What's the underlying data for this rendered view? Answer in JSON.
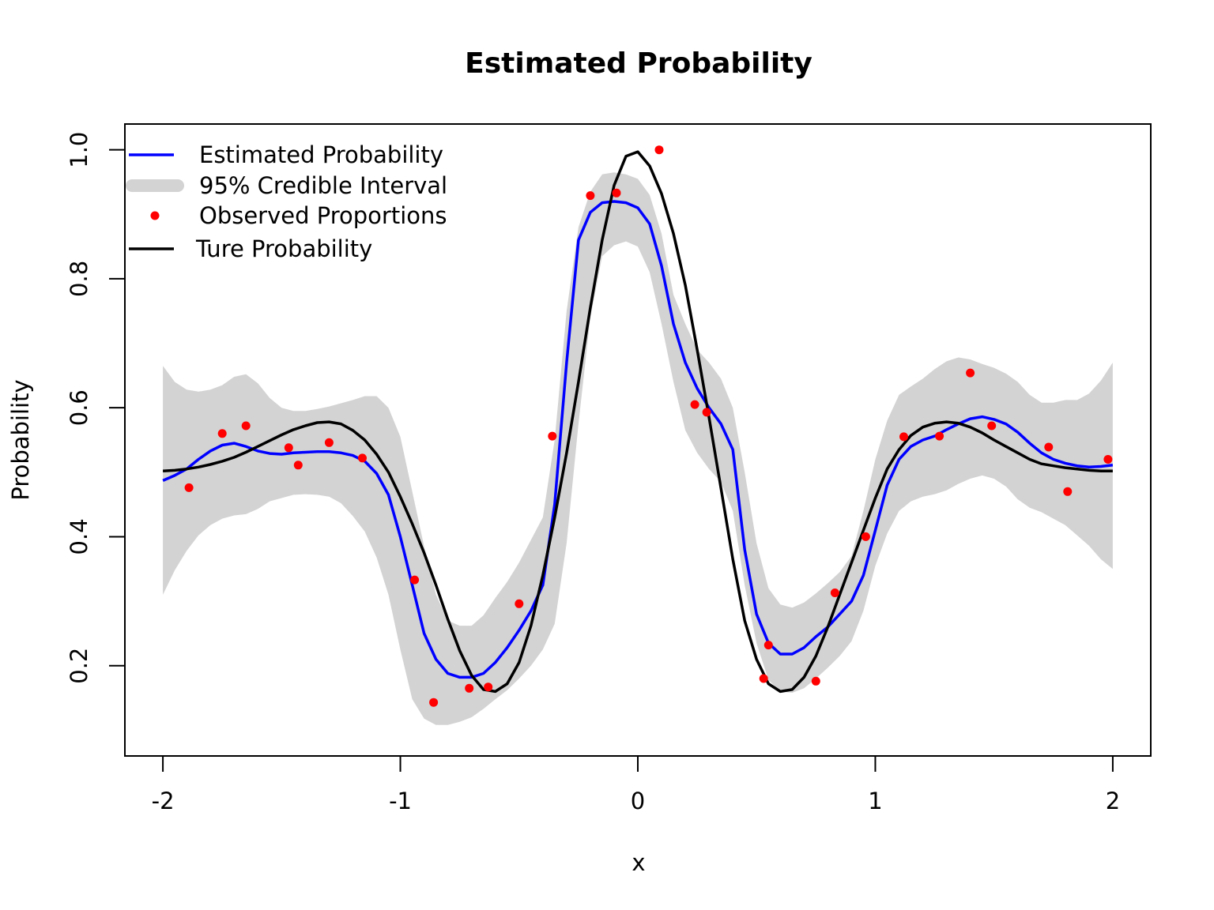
{
  "chart_data": {
    "type": "line",
    "title": "Estimated Probability",
    "xlabel": "x",
    "ylabel": "Probability",
    "xlim": [
      -2.16,
      2.16
    ],
    "ylim": [
      0.06,
      1.04
    ],
    "x_ticks": [
      -2,
      -1,
      0,
      1,
      2
    ],
    "x_tick_labels": [
      "-2",
      "-1",
      "0",
      "1",
      "2"
    ],
    "y_ticks": [
      0.2,
      0.4,
      0.6,
      0.8,
      1.0
    ],
    "y_tick_labels": [
      "0.2",
      "0.4",
      "0.6",
      "0.8",
      "1.0"
    ],
    "grid": false,
    "legend_position": "top-left",
    "legend": [
      {
        "label": "Estimated Probability",
        "kind": "line",
        "color": "#0000ff"
      },
      {
        "label": "95% Credible Interval",
        "kind": "band",
        "color": "#d3d3d3"
      },
      {
        "label": "Observed Proportions",
        "kind": "point",
        "color": "#ff0000"
      },
      {
        "label": "Ture Probability",
        "kind": "line",
        "color": "#000000"
      }
    ],
    "series": [
      {
        "name": "95% Credible Interval",
        "type": "band",
        "color": "#d3d3d3",
        "x": [
          -2.0,
          -1.95,
          -1.9,
          -1.85,
          -1.8,
          -1.75,
          -1.7,
          -1.65,
          -1.6,
          -1.55,
          -1.5,
          -1.45,
          -1.4,
          -1.35,
          -1.3,
          -1.25,
          -1.2,
          -1.15,
          -1.1,
          -1.05,
          -1.0,
          -0.95,
          -0.9,
          -0.85,
          -0.8,
          -0.75,
          -0.7,
          -0.65,
          -0.6,
          -0.55,
          -0.5,
          -0.45,
          -0.4,
          -0.35,
          -0.3,
          -0.25,
          -0.2,
          -0.15,
          -0.1,
          -0.05,
          0.0,
          0.05,
          0.1,
          0.15,
          0.2,
          0.25,
          0.3,
          0.35,
          0.4,
          0.45,
          0.5,
          0.55,
          0.6,
          0.65,
          0.7,
          0.75,
          0.8,
          0.85,
          0.9,
          0.95,
          1.0,
          1.05,
          1.1,
          1.15,
          1.2,
          1.25,
          1.3,
          1.35,
          1.4,
          1.45,
          1.5,
          1.55,
          1.6,
          1.65,
          1.7,
          1.75,
          1.8,
          1.85,
          1.9,
          1.95,
          2.0
        ],
        "upper": [
          0.665,
          0.64,
          0.628,
          0.625,
          0.628,
          0.635,
          0.648,
          0.652,
          0.638,
          0.615,
          0.6,
          0.595,
          0.595,
          0.598,
          0.602,
          0.607,
          0.612,
          0.618,
          0.618,
          0.6,
          0.555,
          0.47,
          0.385,
          0.31,
          0.27,
          0.262,
          0.262,
          0.278,
          0.305,
          0.33,
          0.36,
          0.395,
          0.43,
          0.55,
          0.75,
          0.88,
          0.935,
          0.962,
          0.965,
          0.962,
          0.955,
          0.93,
          0.87,
          0.775,
          0.73,
          0.69,
          0.67,
          0.645,
          0.6,
          0.5,
          0.39,
          0.32,
          0.295,
          0.29,
          0.298,
          0.312,
          0.328,
          0.345,
          0.37,
          0.44,
          0.52,
          0.58,
          0.62,
          0.633,
          0.645,
          0.66,
          0.672,
          0.678,
          0.675,
          0.668,
          0.662,
          0.653,
          0.64,
          0.62,
          0.608,
          0.608,
          0.612,
          0.612,
          0.622,
          0.642,
          0.67
        ],
        "lower": [
          0.31,
          0.348,
          0.378,
          0.402,
          0.418,
          0.428,
          0.433,
          0.435,
          0.443,
          0.455,
          0.46,
          0.465,
          0.466,
          0.465,
          0.462,
          0.452,
          0.432,
          0.408,
          0.368,
          0.31,
          0.225,
          0.148,
          0.118,
          0.108,
          0.108,
          0.113,
          0.12,
          0.133,
          0.148,
          0.162,
          0.18,
          0.2,
          0.225,
          0.265,
          0.39,
          0.575,
          0.74,
          0.835,
          0.852,
          0.858,
          0.85,
          0.81,
          0.73,
          0.64,
          0.565,
          0.53,
          0.505,
          0.485,
          0.44,
          0.325,
          0.235,
          0.178,
          0.16,
          0.158,
          0.165,
          0.18,
          0.197,
          0.215,
          0.238,
          0.285,
          0.355,
          0.405,
          0.44,
          0.455,
          0.462,
          0.466,
          0.472,
          0.482,
          0.49,
          0.495,
          0.49,
          0.478,
          0.458,
          0.445,
          0.438,
          0.428,
          0.418,
          0.402,
          0.386,
          0.365,
          0.35
        ]
      },
      {
        "name": "Estimated Probability",
        "type": "line",
        "color": "#0000ff",
        "x": [
          -2.0,
          -1.95,
          -1.9,
          -1.85,
          -1.8,
          -1.75,
          -1.7,
          -1.65,
          -1.6,
          -1.55,
          -1.5,
          -1.45,
          -1.4,
          -1.35,
          -1.3,
          -1.25,
          -1.2,
          -1.15,
          -1.1,
          -1.05,
          -1.0,
          -0.95,
          -0.9,
          -0.85,
          -0.8,
          -0.75,
          -0.7,
          -0.65,
          -0.6,
          -0.55,
          -0.5,
          -0.45,
          -0.4,
          -0.35,
          -0.3,
          -0.25,
          -0.2,
          -0.15,
          -0.1,
          -0.05,
          0.0,
          0.05,
          0.1,
          0.15,
          0.2,
          0.25,
          0.3,
          0.35,
          0.4,
          0.45,
          0.5,
          0.55,
          0.6,
          0.65,
          0.7,
          0.75,
          0.8,
          0.85,
          0.9,
          0.95,
          1.0,
          1.05,
          1.1,
          1.15,
          1.2,
          1.25,
          1.3,
          1.35,
          1.4,
          1.45,
          1.5,
          1.55,
          1.6,
          1.65,
          1.7,
          1.75,
          1.8,
          1.85,
          1.9,
          1.95,
          2.0
        ],
        "y": [
          0.487,
          0.495,
          0.505,
          0.52,
          0.533,
          0.542,
          0.545,
          0.54,
          0.533,
          0.529,
          0.528,
          0.53,
          0.531,
          0.532,
          0.532,
          0.53,
          0.526,
          0.517,
          0.498,
          0.465,
          0.4,
          0.325,
          0.25,
          0.21,
          0.188,
          0.182,
          0.182,
          0.188,
          0.205,
          0.228,
          0.255,
          0.285,
          0.325,
          0.45,
          0.67,
          0.86,
          0.903,
          0.918,
          0.92,
          0.918,
          0.91,
          0.885,
          0.82,
          0.73,
          0.67,
          0.63,
          0.6,
          0.575,
          0.535,
          0.38,
          0.28,
          0.235,
          0.218,
          0.218,
          0.228,
          0.245,
          0.26,
          0.28,
          0.3,
          0.34,
          0.41,
          0.48,
          0.52,
          0.54,
          0.55,
          0.556,
          0.566,
          0.575,
          0.583,
          0.586,
          0.582,
          0.575,
          0.562,
          0.545,
          0.53,
          0.52,
          0.514,
          0.51,
          0.508,
          0.509,
          0.511
        ]
      },
      {
        "name": "Ture Probability",
        "type": "line",
        "color": "#000000",
        "x": [
          -2.0,
          -1.95,
          -1.9,
          -1.85,
          -1.8,
          -1.75,
          -1.7,
          -1.65,
          -1.6,
          -1.55,
          -1.5,
          -1.45,
          -1.4,
          -1.35,
          -1.3,
          -1.25,
          -1.2,
          -1.15,
          -1.1,
          -1.05,
          -1.0,
          -0.95,
          -0.9,
          -0.85,
          -0.8,
          -0.75,
          -0.7,
          -0.65,
          -0.6,
          -0.55,
          -0.5,
          -0.45,
          -0.4,
          -0.35,
          -0.3,
          -0.25,
          -0.2,
          -0.15,
          -0.1,
          -0.05,
          0.0,
          0.05,
          0.1,
          0.15,
          0.2,
          0.25,
          0.3,
          0.35,
          0.4,
          0.45,
          0.5,
          0.55,
          0.6,
          0.65,
          0.7,
          0.75,
          0.8,
          0.85,
          0.9,
          0.95,
          1.0,
          1.05,
          1.1,
          1.15,
          1.2,
          1.25,
          1.3,
          1.35,
          1.4,
          1.45,
          1.5,
          1.55,
          1.6,
          1.65,
          1.7,
          1.75,
          1.8,
          1.85,
          1.9,
          1.95,
          2.0
        ],
        "y": [
          0.502,
          0.503,
          0.505,
          0.508,
          0.512,
          0.517,
          0.523,
          0.531,
          0.54,
          0.549,
          0.558,
          0.566,
          0.572,
          0.577,
          0.578,
          0.575,
          0.565,
          0.55,
          0.528,
          0.5,
          0.462,
          0.42,
          0.375,
          0.325,
          0.272,
          0.223,
          0.185,
          0.163,
          0.16,
          0.172,
          0.205,
          0.262,
          0.34,
          0.43,
          0.53,
          0.64,
          0.755,
          0.86,
          0.945,
          0.99,
          0.997,
          0.975,
          0.932,
          0.87,
          0.79,
          0.69,
          0.585,
          0.475,
          0.365,
          0.27,
          0.21,
          0.172,
          0.16,
          0.163,
          0.182,
          0.215,
          0.26,
          0.31,
          0.36,
          0.41,
          0.46,
          0.505,
          0.535,
          0.557,
          0.57,
          0.576,
          0.578,
          0.576,
          0.57,
          0.561,
          0.55,
          0.54,
          0.53,
          0.52,
          0.513,
          0.51,
          0.507,
          0.505,
          0.503,
          0.502,
          0.502
        ]
      },
      {
        "name": "Observed Proportions",
        "type": "scatter",
        "color": "#ff0000",
        "x": [
          -1.89,
          -1.75,
          -1.65,
          -1.47,
          -1.43,
          -1.3,
          -1.16,
          -0.94,
          -0.86,
          -0.71,
          -0.63,
          -0.5,
          -0.36,
          -0.2,
          -0.09,
          0.09,
          0.24,
          0.29,
          0.53,
          0.55,
          0.75,
          0.83,
          0.96,
          1.12,
          1.27,
          1.4,
          1.49,
          1.73,
          1.81,
          1.98
        ],
        "y": [
          0.476,
          0.56,
          0.572,
          0.538,
          0.511,
          0.546,
          0.522,
          0.333,
          0.143,
          0.165,
          0.167,
          0.296,
          0.556,
          0.929,
          0.933,
          1.0,
          0.605,
          0.593,
          0.18,
          0.232,
          0.176,
          0.313,
          0.4,
          0.555,
          0.556,
          0.654,
          0.572,
          0.539,
          0.47,
          0.52
        ]
      }
    ]
  }
}
